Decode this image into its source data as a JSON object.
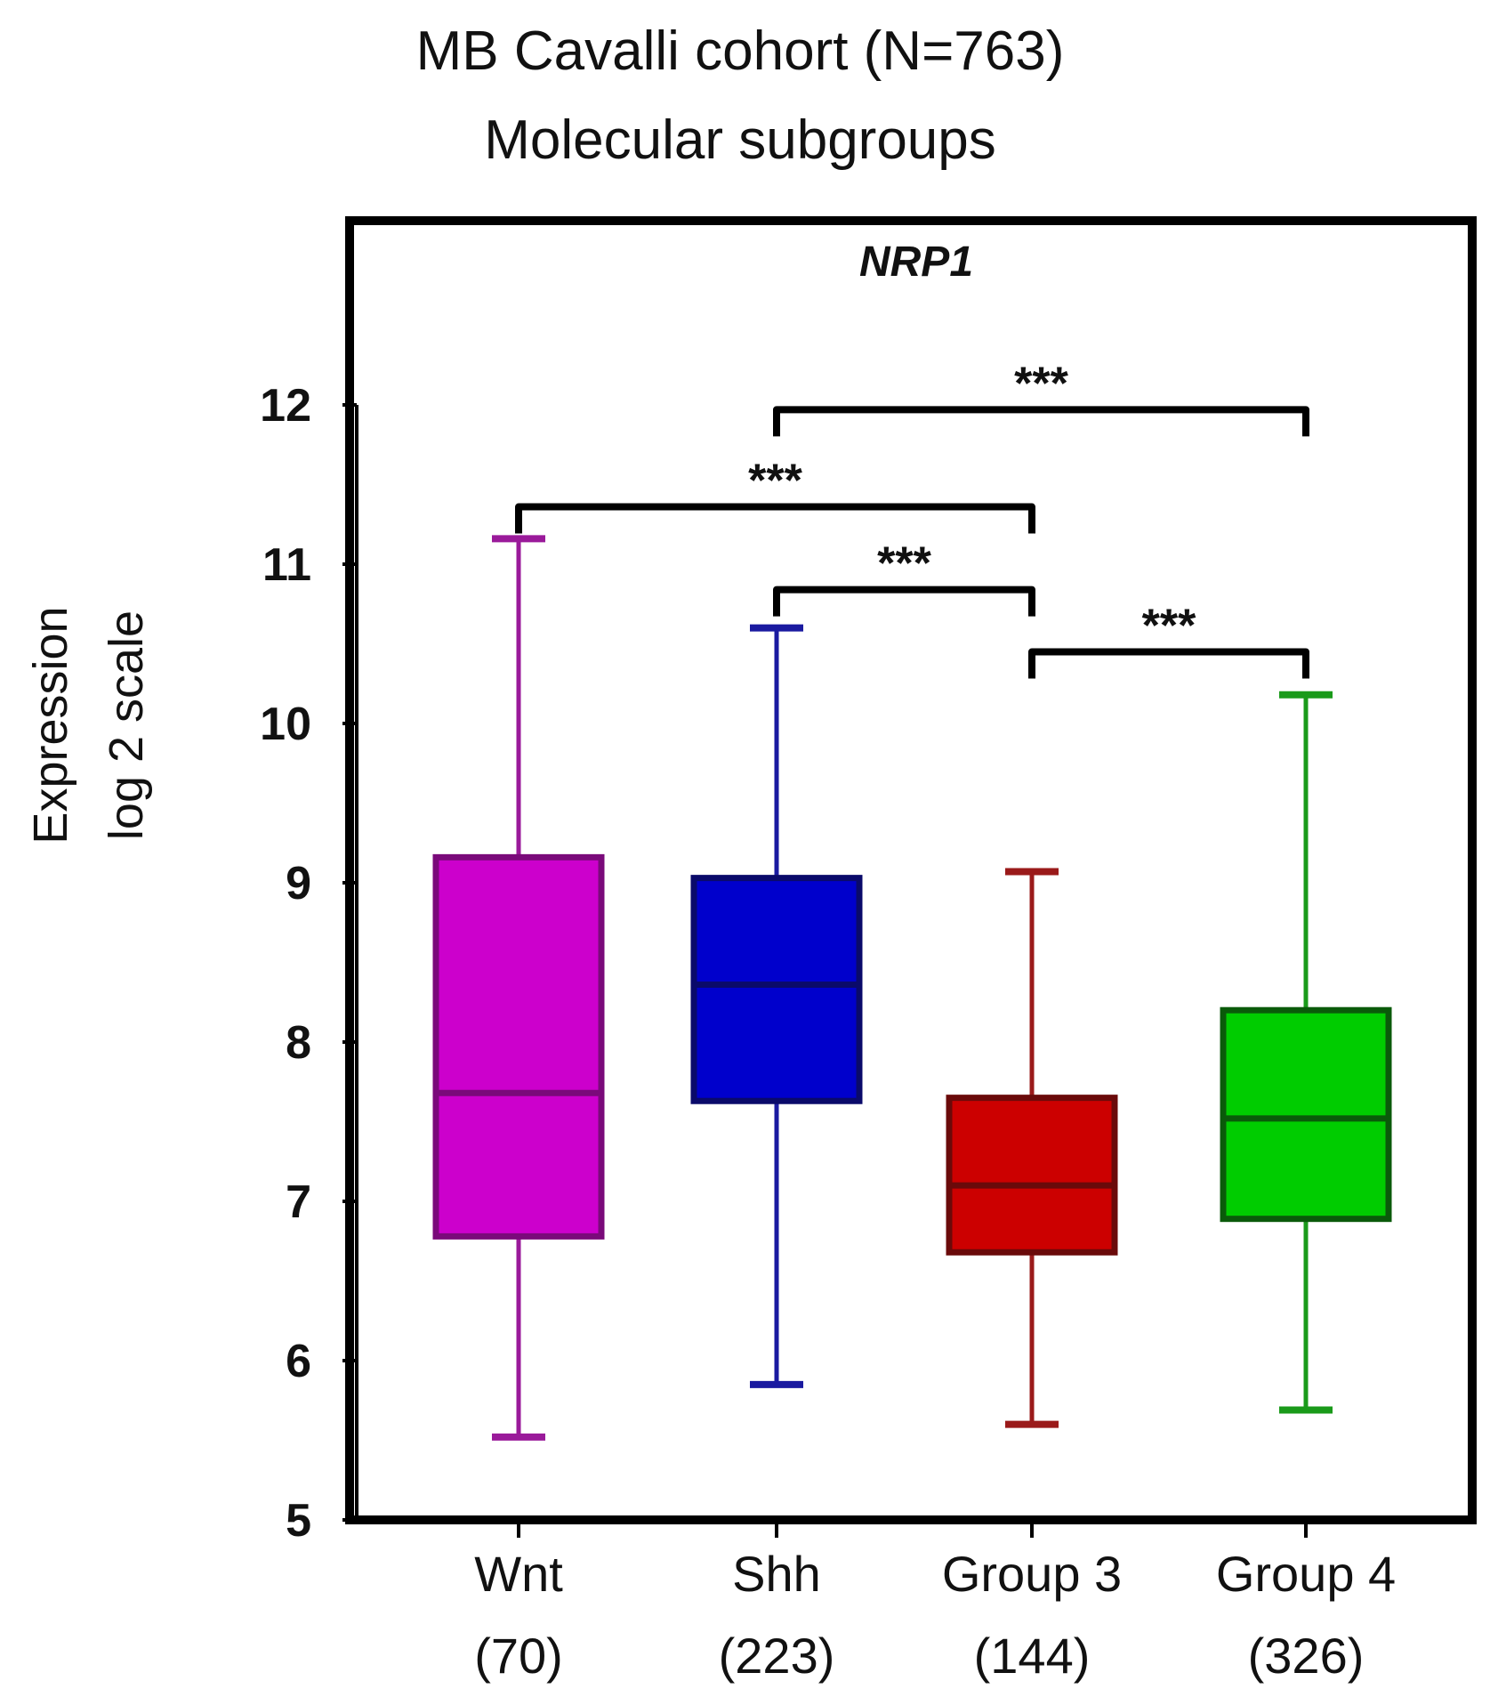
{
  "chart_data": {
    "type": "boxplot",
    "title": "MB Cavalli cohort  (N=763)",
    "subtitle": "Molecular  subgroups",
    "gene_label": "NRP1",
    "ylabel_line1": "Expression",
    "ylabel_line2": "log 2 scale",
    "ylim": [
      5,
      12
    ],
    "yticks": [
      "5",
      "6",
      "7",
      "8",
      "9",
      "10",
      "11",
      "12"
    ],
    "groups": [
      {
        "name": "Wnt",
        "n": "(70)",
        "color": "#cc00cc",
        "edge": "#7a0a7a",
        "whisker_color": "#9a1a9a",
        "min": 5.52,
        "q1": 6.78,
        "median": 7.68,
        "q3": 9.16,
        "max": 11.16
      },
      {
        "name": "Shh",
        "n": "(223)",
        "color": "#0000cc",
        "edge": "#0a0a6a",
        "whisker_color": "#1a1aa0",
        "min": 5.85,
        "q1": 7.63,
        "median": 8.36,
        "q3": 9.03,
        "max": 10.6
      },
      {
        "name": "Group 3",
        "n": "(144)",
        "color": "#cc0000",
        "edge": "#6a0a0a",
        "whisker_color": "#9a1a1a",
        "min": 5.6,
        "q1": 6.68,
        "median": 7.1,
        "q3": 7.65,
        "max": 9.07
      },
      {
        "name": "Group 4",
        "n": "(326)",
        "color": "#00cc00",
        "edge": "#0a5a0a",
        "whisker_color": "#1a9a1a",
        "min": 5.69,
        "q1": 6.89,
        "median": 7.52,
        "q3": 8.2,
        "max": 10.18
      }
    ],
    "significance": [
      {
        "from": 1,
        "to": 3,
        "y": 11.97,
        "label": "***"
      },
      {
        "from": 0,
        "to": 2,
        "y": 11.36,
        "label": "***"
      },
      {
        "from": 1,
        "to": 2,
        "y": 10.84,
        "label": "***"
      },
      {
        "from": 2,
        "to": 3,
        "y": 10.45,
        "label": "***"
      }
    ]
  }
}
